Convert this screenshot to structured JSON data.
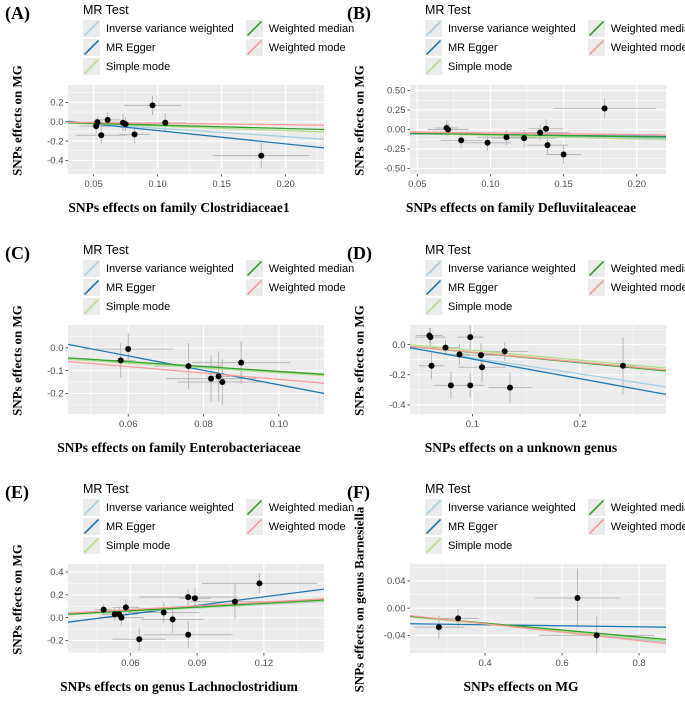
{
  "figure": {
    "legend_title": "MR Test",
    "legend_entries": [
      {
        "name": "Inverse variance weighted",
        "color": "#a6cee3"
      },
      {
        "name": "MR Egger",
        "color": "#1f78b4"
      },
      {
        "name": "Simple mode",
        "color": "#b2df8a"
      },
      {
        "name": "Weighted median",
        "color": "#33a02c"
      },
      {
        "name": "Weighted mode",
        "color": "#fb9a99"
      }
    ],
    "colors": {
      "panel_bg": "#ebebeb",
      "grid": "#ffffff",
      "errorbar": "#b8b8b8",
      "point": "#000000",
      "tick_text": "#4d4d4d",
      "tick_mark": "#333333",
      "legend_key_bg": "#ebebeb"
    }
  },
  "chart_data": [
    {
      "type": "scatter",
      "panel": "(A)",
      "xlabel": "SNPs effects on family Clostridiaceae1",
      "ylabel": "SNPs effects on MG",
      "xlim": [
        0.03,
        0.23
      ],
      "ylim": [
        -0.54,
        0.38
      ],
      "x_ticks": [
        0.05,
        0.1,
        0.15,
        0.2
      ],
      "x_tick_labels": [
        "0.05",
        "0.10",
        "0.15",
        "0.20"
      ],
      "y_ticks": [
        0.2,
        0.0,
        -0.2,
        -0.4
      ],
      "y_tick_labels": [
        "0.2",
        "0.0",
        "-0.2",
        "-0.4"
      ],
      "points": [
        {
          "x": 0.052,
          "y": -0.045,
          "xerr": 0.013,
          "yerr": 0.075
        },
        {
          "x": 0.053,
          "y": -0.005,
          "xerr": 0.018,
          "yerr": 0.06
        },
        {
          "x": 0.056,
          "y": -0.14,
          "xerr": 0.02,
          "yerr": 0.085
        },
        {
          "x": 0.061,
          "y": 0.02,
          "xerr": 0.01,
          "yerr": 0.08
        },
        {
          "x": 0.073,
          "y": -0.01,
          "xerr": 0.013,
          "yerr": 0.09
        },
        {
          "x": 0.075,
          "y": -0.025,
          "xerr": 0.02,
          "yerr": 0.075
        },
        {
          "x": 0.082,
          "y": -0.13,
          "xerr": 0.012,
          "yerr": 0.095
        },
        {
          "x": 0.096,
          "y": 0.17,
          "xerr": 0.022,
          "yerr": 0.1
        },
        {
          "x": 0.106,
          "y": -0.01,
          "xerr": 0.016,
          "yerr": 0.095
        },
        {
          "x": 0.181,
          "y": -0.35,
          "xerr": 0.038,
          "yerr": 0.13
        }
      ],
      "lines": [
        {
          "name": "Inverse variance weighted",
          "y_start": -0.005,
          "y_end": -0.18
        },
        {
          "name": "MR Egger",
          "y_start": 0.005,
          "y_end": -0.27
        },
        {
          "name": "Simple mode",
          "y_start": -0.012,
          "y_end": -0.105
        },
        {
          "name": "Weighted median",
          "y_start": -0.01,
          "y_end": -0.08
        },
        {
          "name": "Weighted mode",
          "y_start": -0.005,
          "y_end": -0.035
        }
      ]
    },
    {
      "type": "scatter",
      "panel": "(B)",
      "xlabel": "SNPs effects on family Defluviitaleaceae",
      "ylabel": "SNPs effects on MG",
      "xlim": [
        0.045,
        0.22
      ],
      "ylim": [
        -0.57,
        0.57
      ],
      "x_ticks": [
        0.05,
        0.1,
        0.15,
        0.2
      ],
      "x_tick_labels": [
        "0.05",
        "0.10",
        "0.15",
        "0.20"
      ],
      "y_ticks": [
        0.5,
        0.25,
        0.0,
        -0.25,
        -0.5
      ],
      "y_tick_labels": [
        "0.50",
        "0.25",
        "0.00",
        "-0.25",
        "-0.50"
      ],
      "points": [
        {
          "x": 0.07,
          "y": 0.02,
          "xerr": 0.008,
          "yerr": 0.1
        },
        {
          "x": 0.071,
          "y": 0.0,
          "xerr": 0.014,
          "yerr": 0.09
        },
        {
          "x": 0.08,
          "y": -0.14,
          "xerr": 0.014,
          "yerr": 0.1
        },
        {
          "x": 0.098,
          "y": -0.17,
          "xerr": 0.016,
          "yerr": 0.1
        },
        {
          "x": 0.111,
          "y": -0.1,
          "xerr": 0.02,
          "yerr": 0.1
        },
        {
          "x": 0.123,
          "y": -0.11,
          "xerr": 0.022,
          "yerr": 0.11
        },
        {
          "x": 0.134,
          "y": -0.04,
          "xerr": 0.02,
          "yerr": 0.1
        },
        {
          "x": 0.138,
          "y": 0.01,
          "xerr": 0.012,
          "yerr": 0.12
        },
        {
          "x": 0.139,
          "y": -0.2,
          "xerr": 0.014,
          "yerr": 0.11
        },
        {
          "x": 0.15,
          "y": -0.32,
          "xerr": 0.012,
          "yerr": 0.12
        },
        {
          "x": 0.178,
          "y": 0.27,
          "xerr": 0.035,
          "yerr": 0.13
        }
      ],
      "lines": [
        {
          "name": "Inverse variance weighted",
          "y_start": -0.048,
          "y_end": -0.115
        },
        {
          "name": "MR Egger",
          "y_start": -0.055,
          "y_end": -0.09
        },
        {
          "name": "Simple mode",
          "y_start": -0.05,
          "y_end": -0.13
        },
        {
          "name": "Weighted median",
          "y_start": -0.048,
          "y_end": -0.098
        },
        {
          "name": "Weighted mode",
          "y_start": -0.033,
          "y_end": -0.07
        }
      ]
    },
    {
      "type": "scatter",
      "panel": "(C)",
      "xlabel": "SNPs effects on family Enterobacteriaceae",
      "ylabel": "SNPs effects on MG",
      "xlim": [
        0.044,
        0.112
      ],
      "ylim": [
        -0.29,
        0.1
      ],
      "x_ticks": [
        0.06,
        0.08,
        0.1
      ],
      "x_tick_labels": [
        "0.06",
        "0.08",
        "0.10"
      ],
      "y_ticks": [
        0.0,
        -0.1,
        -0.2
      ],
      "y_tick_labels": [
        "0.0",
        "-0.1",
        "-0.2"
      ],
      "points": [
        {
          "x": 0.058,
          "y": -0.055,
          "xerr": 0.004,
          "yerr": 0.075
        },
        {
          "x": 0.06,
          "y": -0.005,
          "xerr": 0.012,
          "yerr": 0.07
        },
        {
          "x": 0.076,
          "y": -0.08,
          "xerr": 0.009,
          "yerr": 0.1
        },
        {
          "x": 0.082,
          "y": -0.135,
          "xerr": 0.012,
          "yerr": 0.1
        },
        {
          "x": 0.084,
          "y": -0.125,
          "xerr": 0.003,
          "yerr": 0.11
        },
        {
          "x": 0.085,
          "y": -0.15,
          "xerr": 0.012,
          "yerr": 0.1
        },
        {
          "x": 0.09,
          "y": -0.065,
          "xerr": 0.013,
          "yerr": 0.095
        }
      ],
      "lines": [
        {
          "name": "Inverse variance weighted",
          "y_start": -0.045,
          "y_end": -0.12
        },
        {
          "name": "MR Egger",
          "y_start": 0.015,
          "y_end": -0.2
        },
        {
          "name": "Simple mode",
          "y_start": -0.05,
          "y_end": -0.122
        },
        {
          "name": "Weighted median",
          "y_start": -0.044,
          "y_end": -0.116
        },
        {
          "name": "Weighted mode",
          "y_start": -0.06,
          "y_end": -0.155
        }
      ]
    },
    {
      "type": "scatter",
      "panel": "(D)",
      "xlabel": "SNPs effects on a unknown genus",
      "ylabel": "SNPs effects on MG",
      "xlim": [
        0.042,
        0.28
      ],
      "ylim": [
        -0.46,
        0.13
      ],
      "x_ticks": [
        0.1,
        0.2
      ],
      "x_tick_labels": [
        "0.1",
        "0.2"
      ],
      "y_ticks": [
        0.0,
        -0.2,
        -0.4
      ],
      "y_tick_labels": [
        "0.0",
        "-0.2",
        "-0.4"
      ],
      "points": [
        {
          "x": 0.06,
          "y": 0.06,
          "xerr": 0.012,
          "yerr": 0.05
        },
        {
          "x": 0.061,
          "y": 0.05,
          "xerr": 0.014,
          "yerr": 0.06
        },
        {
          "x": 0.062,
          "y": -0.14,
          "xerr": 0.012,
          "yerr": 0.09
        },
        {
          "x": 0.075,
          "y": -0.02,
          "xerr": 0.013,
          "yerr": 0.05
        },
        {
          "x": 0.08,
          "y": -0.27,
          "xerr": 0.016,
          "yerr": 0.09
        },
        {
          "x": 0.088,
          "y": -0.065,
          "xerr": 0.01,
          "yerr": 0.07
        },
        {
          "x": 0.098,
          "y": 0.05,
          "xerr": 0.012,
          "yerr": 0.08
        },
        {
          "x": 0.098,
          "y": -0.27,
          "xerr": 0.013,
          "yerr": 0.08
        },
        {
          "x": 0.108,
          "y": -0.07,
          "xerr": 0.02,
          "yerr": 0.08
        },
        {
          "x": 0.109,
          "y": -0.15,
          "xerr": 0.022,
          "yerr": 0.1
        },
        {
          "x": 0.13,
          "y": -0.045,
          "xerr": 0.022,
          "yerr": 0.06
        },
        {
          "x": 0.135,
          "y": -0.285,
          "xerr": 0.02,
          "yerr": 0.1
        },
        {
          "x": 0.24,
          "y": -0.14,
          "xerr": 0.015,
          "yerr": 0.19
        }
      ],
      "lines": [
        {
          "name": "Inverse variance weighted",
          "y_start": -0.025,
          "y_end": -0.28
        },
        {
          "name": "MR Egger",
          "y_start": -0.02,
          "y_end": -0.33
        },
        {
          "name": "Simple mode",
          "y_start": 0.0,
          "y_end": -0.155
        },
        {
          "name": "Weighted median",
          "y_start": -0.012,
          "y_end": -0.175
        },
        {
          "name": "Weighted mode",
          "y_start": -0.012,
          "y_end": -0.168
        }
      ]
    },
    {
      "type": "scatter",
      "panel": "(E)",
      "xlabel": "SNPs effects on genus Lachnoclostridium",
      "ylabel": "SNPs effects on MG",
      "xlim": [
        0.032,
        0.147
      ],
      "ylim": [
        -0.31,
        0.47
      ],
      "x_ticks": [
        0.06,
        0.09,
        0.12
      ],
      "x_tick_labels": [
        "0.06",
        "0.09",
        "0.12"
      ],
      "y_ticks": [
        0.4,
        0.2,
        0.0,
        -0.2
      ],
      "y_tick_labels": [
        "0.4",
        "0.2",
        "0.0",
        "-0.2"
      ],
      "points": [
        {
          "x": 0.048,
          "y": 0.07,
          "xerr": 0.004,
          "yerr": 0.05
        },
        {
          "x": 0.053,
          "y": 0.03,
          "xerr": 0.006,
          "yerr": 0.06
        },
        {
          "x": 0.055,
          "y": 0.03,
          "xerr": 0.008,
          "yerr": 0.06
        },
        {
          "x": 0.056,
          "y": 0.0,
          "xerr": 0.01,
          "yerr": 0.07
        },
        {
          "x": 0.058,
          "y": 0.09,
          "xerr": 0.006,
          "yerr": 0.07
        },
        {
          "x": 0.064,
          "y": -0.19,
          "xerr": 0.012,
          "yerr": 0.1
        },
        {
          "x": 0.075,
          "y": 0.045,
          "xerr": 0.016,
          "yerr": 0.09
        },
        {
          "x": 0.079,
          "y": -0.015,
          "xerr": 0.014,
          "yerr": 0.12
        },
        {
          "x": 0.086,
          "y": 0.18,
          "xerr": 0.022,
          "yerr": 0.07
        },
        {
          "x": 0.086,
          "y": -0.15,
          "xerr": 0.02,
          "yerr": 0.12
        },
        {
          "x": 0.089,
          "y": 0.17,
          "xerr": 0.007,
          "yerr": 0.09
        },
        {
          "x": 0.107,
          "y": 0.14,
          "xerr": 0.02,
          "yerr": 0.15
        },
        {
          "x": 0.118,
          "y": 0.3,
          "xerr": 0.026,
          "yerr": 0.09
        }
      ],
      "lines": [
        {
          "name": "Inverse variance weighted",
          "y_start": 0.028,
          "y_end": 0.142
        },
        {
          "name": "MR Egger",
          "y_start": -0.04,
          "y_end": 0.25
        },
        {
          "name": "Simple mode",
          "y_start": 0.025,
          "y_end": 0.148
        },
        {
          "name": "Weighted median",
          "y_start": 0.03,
          "y_end": 0.155
        },
        {
          "name": "Weighted mode",
          "y_start": 0.04,
          "y_end": 0.165
        }
      ]
    },
    {
      "type": "scatter",
      "panel": "(F)",
      "xlabel": "SNPs effects on MG",
      "ylabel": "SNPs effects on genus Barnesiella",
      "xlim": [
        0.205,
        0.87
      ],
      "ylim": [
        -0.066,
        0.065
      ],
      "x_ticks": [
        0.4,
        0.6,
        0.8
      ],
      "x_tick_labels": [
        "0.4",
        "0.6",
        "0.8"
      ],
      "y_ticks": [
        0.04,
        0.0,
        -0.04
      ],
      "y_tick_labels": [
        "0.04",
        "0.00",
        "-0.04"
      ],
      "points": [
        {
          "x": 0.28,
          "y": -0.028,
          "xerr": 0.066,
          "yerr": 0.017
        },
        {
          "x": 0.33,
          "y": -0.015,
          "xerr": 0.053,
          "yerr": 0.014
        },
        {
          "x": 0.64,
          "y": 0.015,
          "xerr": 0.11,
          "yerr": 0.043
        },
        {
          "x": 0.69,
          "y": -0.04,
          "xerr": 0.15,
          "yerr": 0.028
        }
      ],
      "lines": [
        {
          "name": "Inverse variance weighted",
          "y_start": -0.012,
          "y_end": -0.05
        },
        {
          "name": "MR Egger",
          "y_start": -0.023,
          "y_end": -0.028
        },
        {
          "name": "Simple mode",
          "y_start": -0.013,
          "y_end": -0.048
        },
        {
          "name": "Weighted median",
          "y_start": -0.012,
          "y_end": -0.046
        },
        {
          "name": "Weighted mode",
          "y_start": -0.011,
          "y_end": -0.052
        }
      ]
    }
  ]
}
